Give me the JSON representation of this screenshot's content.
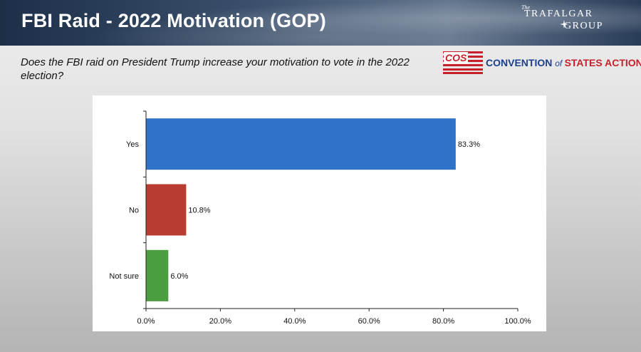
{
  "header": {
    "title": "FBI Raid - 2022 Motivation (GOP)",
    "brand_the": "The",
    "brand_line1": "TRAFALGAR",
    "brand_line2": "GROUP"
  },
  "question": "Does the FBI raid on President Trump increase your motivation to vote in the 2022 election?",
  "sponsor": {
    "abbr": "COS",
    "name_part1": "CONVENTION ",
    "name_part2": "of ",
    "name_part3": "STATES ACTION"
  },
  "colors": {
    "yes": "#2f72c9",
    "no": "#b83c31",
    "not_sure": "#4a9e3f",
    "header_dark": "#1d2f48",
    "brand_red": "#c8202b",
    "brand_blue": "#1c3f8a"
  },
  "chart_data": {
    "type": "bar",
    "orientation": "horizontal",
    "categories": [
      "Yes",
      "No",
      "Not sure"
    ],
    "values": [
      83.3,
      10.8,
      6.0
    ],
    "value_labels": [
      "83.3%",
      "10.8%",
      "6.0%"
    ],
    "xlim": [
      0,
      100
    ],
    "x_ticks": [
      0,
      20,
      40,
      60,
      80,
      100
    ],
    "x_tick_labels": [
      "0.0%",
      "20.0%",
      "40.0%",
      "60.0%",
      "80.0%",
      "100.0%"
    ],
    "grid": false,
    "legend": "none"
  }
}
